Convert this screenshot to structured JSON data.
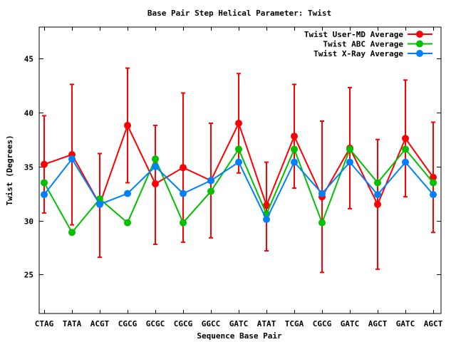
{
  "chart_data": {
    "type": "line",
    "title": "Base Pair Step Helical Parameter: Twist",
    "xlabel": "Sequence Base Pair",
    "ylabel": "Twist (Degrees)",
    "categories": [
      "CTAG",
      "TATA",
      "ACGT",
      "CGCG",
      "GCGC",
      "CGCG",
      "GGCC",
      "GATC",
      "ATAT",
      "TCGA",
      "CGCG",
      "GATC",
      "AGCT",
      "GATC",
      "AGCT"
    ],
    "ylim": [
      21.4,
      47.9
    ],
    "yticks": [
      25,
      30,
      35,
      40,
      45
    ],
    "grid": false,
    "legend_position": "top-right",
    "series": [
      {
        "name": "Twist User-MD Average",
        "color": "#ff0000",
        "values": [
          35.2,
          36.1,
          31.5,
          38.8,
          33.4,
          34.9,
          33.7,
          39.0,
          31.4,
          37.8,
          32.2,
          36.7,
          31.5,
          37.6,
          34.0
        ],
        "error_low": [
          30.7,
          29.6,
          26.6,
          33.5,
          27.8,
          28.0,
          28.4,
          34.4,
          27.2,
          33.0,
          25.2,
          31.1,
          25.5,
          32.2,
          28.9
        ],
        "error_high": [
          39.7,
          42.6,
          36.2,
          44.1,
          38.8,
          41.8,
          39.0,
          43.6,
          35.4,
          42.6,
          39.2,
          42.3,
          37.5,
          43.0,
          39.1
        ]
      },
      {
        "name": "Twist ABC Average",
        "color": "#00c000",
        "values": [
          33.5,
          28.9,
          32.0,
          29.8,
          35.7,
          29.8,
          32.7,
          36.6,
          30.6,
          36.6,
          29.8,
          36.6,
          33.5,
          36.6,
          33.5
        ]
      },
      {
        "name": "Twist X-Ray Average",
        "color": "#0080ff",
        "values": [
          32.4,
          35.7,
          31.5,
          32.5,
          35.0,
          32.5,
          33.7,
          35.4,
          30.1,
          35.4,
          32.5,
          35.4,
          32.4,
          35.4,
          32.4
        ]
      }
    ]
  }
}
